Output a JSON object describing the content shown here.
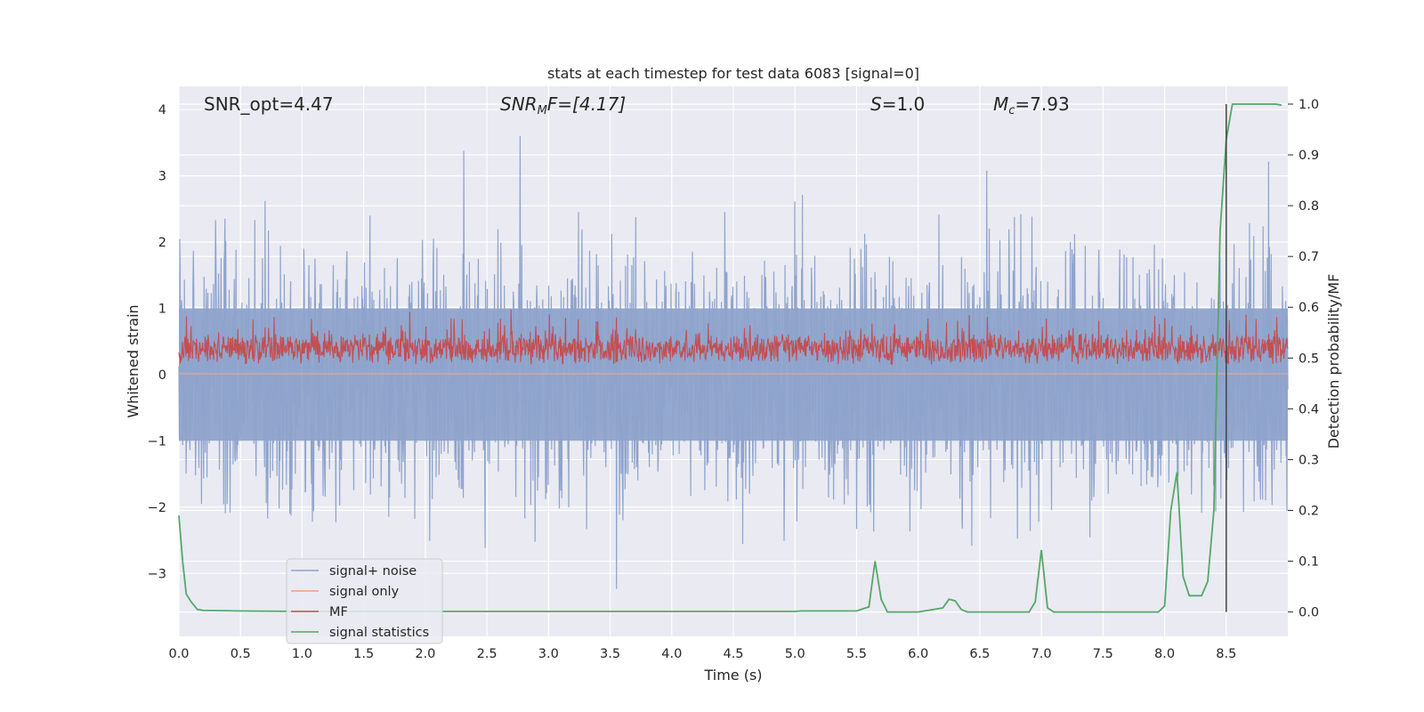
{
  "chart_data": {
    "type": "line",
    "title": "stats at each timestep for test data 6083 [signal=0]",
    "xlabel": "Time (s)",
    "ylabel": "Whitened strain",
    "ylabel_right": "Detection probability/MF",
    "xlim": [
      0.0,
      9.0
    ],
    "ylim": [
      -3.95,
      4.35
    ],
    "ylim_right": [
      -0.048,
      1.035
    ],
    "xticks": [
      "0.0",
      "0.5",
      "1.0",
      "1.5",
      "2.0",
      "2.5",
      "3.0",
      "3.5",
      "4.0",
      "4.5",
      "5.0",
      "5.5",
      "6.0",
      "6.5",
      "7.0",
      "7.5",
      "8.0",
      "8.5"
    ],
    "yticks": [
      "4",
      "3",
      "2",
      "1",
      "0",
      "−1",
      "−2",
      "−3"
    ],
    "yticks_right": [
      "1.0",
      "0.9",
      "0.8",
      "0.7",
      "0.6",
      "0.5",
      "0.4",
      "0.3",
      "0.2",
      "0.1",
      "0.0"
    ],
    "annotations": [
      {
        "text": "SNR_opt=4.47",
        "x": 0.2
      },
      {
        "text": "SNRₘF=[4.17]",
        "x": 2.62,
        "base": "SNR",
        "sub": "M",
        "rest": "F=[4.17]"
      },
      {
        "text": "S=1.0",
        "x": 5.6,
        "base": "S",
        "rest": "=1.0"
      },
      {
        "text": "Mᴄ=7.93",
        "x": 6.6,
        "base": "M",
        "sub": "c",
        "rest": "=7.93"
      }
    ],
    "vline_x": 8.5,
    "legend": {
      "position": "lower-left",
      "entries": [
        "signal+ noise",
        "signal only",
        "MF",
        "signal statistics"
      ]
    },
    "series": [
      {
        "name": "signal+ noise",
        "color": "#8fa4cc",
        "axis": "left",
        "description": "whitened strain noise, amplitude about ±2 with spikes to ±3.5"
      },
      {
        "name": "signal only",
        "color": "#eea07c",
        "axis": "left",
        "constant": 0.0
      },
      {
        "name": "MF",
        "color": "#c44e52",
        "axis": "left",
        "description": "matched-filter output fluctuating between 0 and about 0.9"
      },
      {
        "name": "signal statistics",
        "color": "#55a868",
        "axis": "right",
        "x": [
          0.0,
          0.03,
          0.06,
          0.1,
          0.15,
          0.2,
          0.5,
          1.0,
          2.0,
          3.0,
          4.0,
          5.0,
          5.05,
          5.5,
          5.6,
          5.65,
          5.7,
          5.75,
          5.8,
          5.85,
          6.0,
          6.2,
          6.25,
          6.3,
          6.35,
          6.4,
          6.5,
          6.9,
          6.95,
          7.0,
          7.05,
          7.1,
          7.15,
          7.5,
          7.95,
          8.0,
          8.05,
          8.1,
          8.15,
          8.2,
          8.25,
          8.3,
          8.35,
          8.4,
          8.45,
          8.5,
          8.55,
          8.6,
          8.8,
          8.9,
          8.95
        ],
        "values": [
          0.19,
          0.1,
          0.035,
          0.02,
          0.005,
          0.003,
          0.002,
          0.001,
          0.001,
          0.001,
          0.001,
          0.001,
          0.002,
          0.002,
          0.01,
          0.1,
          0.025,
          0.0,
          0.0,
          0.0,
          0.0,
          0.008,
          0.025,
          0.022,
          0.005,
          0.0,
          0.0,
          0.0,
          0.02,
          0.122,
          0.008,
          0.0,
          0.0,
          0.0,
          0.0,
          0.012,
          0.2,
          0.275,
          0.07,
          0.032,
          0.032,
          0.032,
          0.06,
          0.2,
          0.75,
          0.93,
          1.0,
          1.0,
          1.0,
          1.0,
          0.998
        ]
      }
    ]
  }
}
